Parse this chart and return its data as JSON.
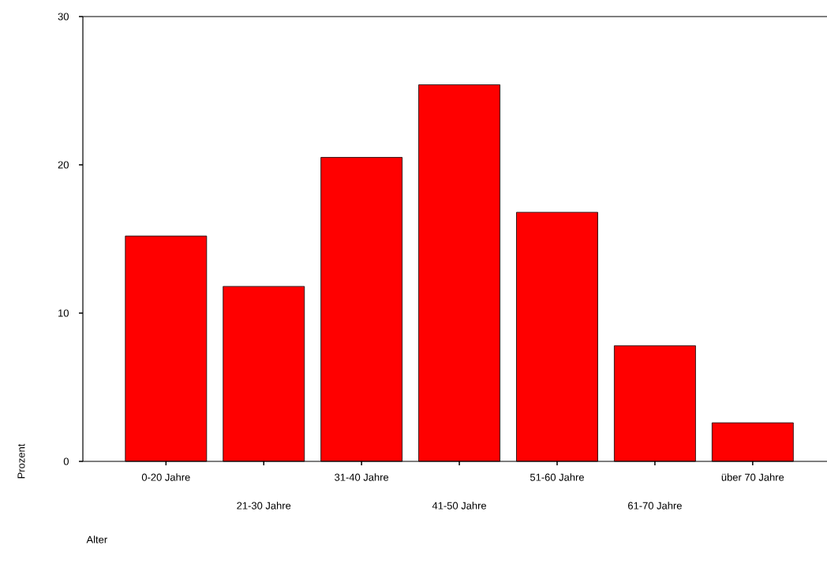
{
  "chart_data": {
    "type": "bar",
    "xlabel": "Alter",
    "ylabel": "Prozent",
    "categories": [
      "0-20 Jahre",
      "21-30 Jahre",
      "31-40 Jahre",
      "41-50 Jahre",
      "51-60 Jahre",
      "61-70 Jahre",
      "über 70 Jahre"
    ],
    "values": [
      15.2,
      11.8,
      20.5,
      25.4,
      16.8,
      7.8,
      2.6
    ],
    "color": "#ff0000",
    "ylim": [
      0,
      30
    ],
    "yticks": [
      0,
      10,
      20,
      30
    ]
  }
}
